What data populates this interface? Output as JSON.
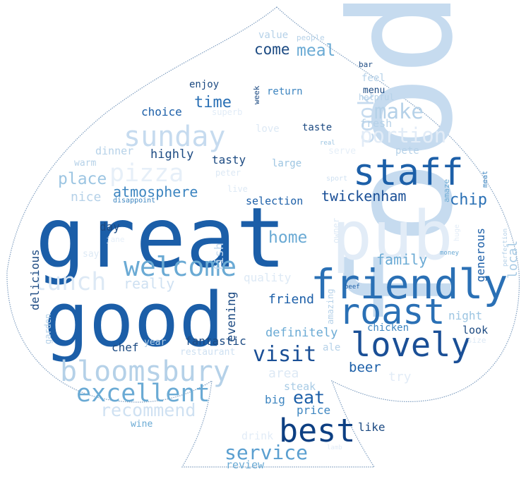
{
  "words": [
    {
      "text": "food",
      "color": "#c6dbef",
      "rotate": -90
    },
    {
      "text": "great",
      "color": "#1b5ea8",
      "rotate": 0
    },
    {
      "text": "good",
      "color": "#1b5ea8",
      "rotate": 0
    },
    {
      "text": "pub",
      "color": "#e2ecf7",
      "rotate": 0
    },
    {
      "text": "friendly",
      "color": "#2a70b5",
      "rotate": 0
    },
    {
      "text": "staff",
      "color": "#1c5fa8",
      "rotate": 0
    },
    {
      "text": "roast",
      "color": "#2a70b5",
      "rotate": 0
    },
    {
      "text": "lovely",
      "color": "#1a4f96",
      "rotate": 0
    },
    {
      "text": "best",
      "color": "#0d3f82",
      "rotate": 0
    },
    {
      "text": "bloomsbury",
      "color": "#b5d1e8",
      "rotate": 0
    },
    {
      "text": "sunday",
      "color": "#c6dbef",
      "rotate": 0
    },
    {
      "text": "welcome",
      "color": "#6aaad4",
      "rotate": 0
    },
    {
      "text": "excellent",
      "color": "#6aaad4",
      "rotate": 0
    },
    {
      "text": "pizza",
      "color": "#e6eff8",
      "rotate": 0
    },
    {
      "text": "lunch",
      "color": "#dde9f5",
      "rotate": 0
    },
    {
      "text": "cook",
      "color": "#c6dbef",
      "rotate": -90
    },
    {
      "text": "make",
      "color": "#b5d1e8",
      "rotate": 0
    },
    {
      "text": "portion",
      "color": "#e2ecf7",
      "rotate": 0
    },
    {
      "text": "visit",
      "color": "#1a4f96",
      "rotate": 0
    },
    {
      "text": "service",
      "color": "#5a9fd0",
      "rotate": 0
    },
    {
      "text": "recommend",
      "color": "#cfe1f2",
      "rotate": 0
    },
    {
      "text": "atmosphere",
      "color": "#3d85c0",
      "rotate": 0
    },
    {
      "text": "twickenham",
      "color": "#1a4f96",
      "rotate": 0
    },
    {
      "text": "chip",
      "color": "#2a70b5",
      "rotate": 0
    },
    {
      "text": "meal",
      "color": "#6aaad4",
      "rotate": 0
    },
    {
      "text": "come",
      "color": "#1c4a82",
      "rotate": 0
    },
    {
      "text": "time",
      "color": "#2a70b5",
      "rotate": 0
    },
    {
      "text": "home",
      "color": "#6aaad4",
      "rotate": 0
    },
    {
      "text": "place",
      "color": "#9cc5e2",
      "rotate": 0
    },
    {
      "text": "family",
      "color": "#6aaad4",
      "rotate": 0
    },
    {
      "text": "local",
      "color": "#a8cbe5",
      "rotate": -90
    },
    {
      "text": "eat",
      "color": "#1c5fa8",
      "rotate": 0
    },
    {
      "text": "beer",
      "color": "#1c5fa8",
      "rotate": 0
    },
    {
      "text": "friend",
      "color": "#1c5fa8",
      "rotate": 0
    },
    {
      "text": "definitely",
      "color": "#6aaad4",
      "rotate": 0
    },
    {
      "text": "area",
      "color": "#dde9f5",
      "rotate": 0
    },
    {
      "text": "nice",
      "color": "#b5d1e8",
      "rotate": 0
    },
    {
      "text": "really",
      "color": "#cfe1f2",
      "rotate": 0
    },
    {
      "text": "highly",
      "color": "#1c4a82",
      "rotate": 0
    },
    {
      "text": "tasty",
      "color": "#1c4a82",
      "rotate": 0
    },
    {
      "text": "choice",
      "color": "#1c5fa8",
      "rotate": 0
    },
    {
      "text": "fish",
      "color": "#c6dbef",
      "rotate": -90
    },
    {
      "text": "evening",
      "color": "#1c4a82",
      "rotate": -90
    },
    {
      "text": "fantastic",
      "color": "#1c4a82",
      "rotate": 0
    },
    {
      "text": "chef",
      "color": "#1c4a82",
      "rotate": 0
    },
    {
      "text": "delicious",
      "color": "#1c4a82",
      "rotate": -90
    },
    {
      "text": "selection",
      "color": "#1c5fa8",
      "rotate": 0
    },
    {
      "text": "quality",
      "color": "#dde9f5",
      "rotate": 0
    },
    {
      "text": "price",
      "color": "#3d85c0",
      "rotate": 0
    },
    {
      "text": "steak",
      "color": "#a8cbe5",
      "rotate": 0
    },
    {
      "text": "big",
      "color": "#3d85c0",
      "rotate": 0
    },
    {
      "text": "drink",
      "color": "#e2ecf7",
      "rotate": 0
    },
    {
      "text": "review",
      "color": "#6aaad4",
      "rotate": 0
    },
    {
      "text": "like",
      "color": "#1c4a82",
      "rotate": 0
    },
    {
      "text": "night",
      "color": "#9cc5e2",
      "rotate": 0
    },
    {
      "text": "look",
      "color": "#1c4a82",
      "rotate": 0
    },
    {
      "text": "chicken",
      "color": "#3d85c0",
      "rotate": 0
    },
    {
      "text": "ale",
      "color": "#b5d1e8",
      "rotate": 0
    },
    {
      "text": "generous",
      "color": "#1c5fa8",
      "rotate": -90
    },
    {
      "text": "amazing",
      "color": "#b5d1e8",
      "rotate": -90
    },
    {
      "text": "value",
      "color": "#b5d1e8",
      "rotate": 0
    },
    {
      "text": "return",
      "color": "#3d85c0",
      "rotate": 0
    },
    {
      "text": "menu",
      "color": "#1c4a82",
      "rotate": 0
    },
    {
      "text": "enjoy",
      "color": "#1c4a82",
      "rotate": 0
    },
    {
      "text": "fresh",
      "color": "#b5d1e8",
      "rotate": 0
    },
    {
      "text": "taste",
      "color": "#1c4a82",
      "rotate": 0
    },
    {
      "text": "love",
      "color": "#dde9f5",
      "rotate": 0
    },
    {
      "text": "superb",
      "color": "#e2ecf7",
      "rotate": 0
    },
    {
      "text": "dinner",
      "color": "#b5d1e8",
      "rotate": 0
    },
    {
      "text": "warm",
      "color": "#b5d1e8",
      "rotate": 0
    },
    {
      "text": "large",
      "color": "#9cc5e2",
      "rotate": 0
    },
    {
      "text": "pete",
      "color": "#b5d1e8",
      "rotate": 0
    },
    {
      "text": "serve",
      "color": "#e6eff8",
      "rotate": 0
    },
    {
      "text": "day",
      "color": "#1c4a82",
      "rotate": 0
    },
    {
      "text": "year",
      "color": "#b5d1e8",
      "rotate": 0
    },
    {
      "text": "restaurant",
      "color": "#cfe1f2",
      "rotate": 0
    },
    {
      "text": "say",
      "color": "#dde9f5",
      "rotate": 0
    },
    {
      "text": "jane",
      "color": "#e6eff8",
      "rotate": 0
    },
    {
      "text": "garden",
      "color": "#b5d1e8",
      "rotate": -90
    },
    {
      "text": "wine",
      "color": "#6aaad4",
      "rotate": 0
    },
    {
      "text": "lamb",
      "color": "#e2ecf7",
      "rotate": 0
    },
    {
      "text": "people",
      "color": "#b5d1e8",
      "rotate": 0
    },
    {
      "text": "bar",
      "color": "#1c4a82",
      "rotate": 0
    },
    {
      "text": "feel",
      "color": "#b5d1e8",
      "rotate": 0
    },
    {
      "text": "week",
      "color": "#1c4a82",
      "rotate": -90
    },
    {
      "text": "helpful",
      "color": "#b5d1e8",
      "rotate": 0
    },
    {
      "text": "real",
      "color": "#9cc5e2",
      "rotate": 0
    },
    {
      "text": "peter",
      "color": "#dde9f5",
      "rotate": 0
    },
    {
      "text": "live",
      "color": "#dde9f5",
      "rotate": 0
    },
    {
      "text": "sport",
      "color": "#cfe1f2",
      "rotate": 0
    },
    {
      "text": "disappoint",
      "color": "#3d85c0",
      "rotate": 0
    },
    {
      "text": "owner",
      "color": "#dde9f5",
      "rotate": -90
    },
    {
      "text": "amaze",
      "color": "#6aaad4",
      "rotate": -90
    },
    {
      "text": "meat",
      "color": "#3d85c0",
      "rotate": -90
    },
    {
      "text": "huge",
      "color": "#e2ecf7",
      "rotate": -90
    },
    {
      "text": "perfection",
      "color": "#b5d1e8",
      "rotate": -90
    },
    {
      "text": "money",
      "color": "#6aaad4",
      "rotate": 0
    },
    {
      "text": "beef",
      "color": "#1c5fa8",
      "rotate": 0
    },
    {
      "text": "size",
      "color": "#dde9f5",
      "rotate": 0
    },
    {
      "text": "try",
      "color": "#e2ecf7",
      "rotate": 0
    }
  ]
}
